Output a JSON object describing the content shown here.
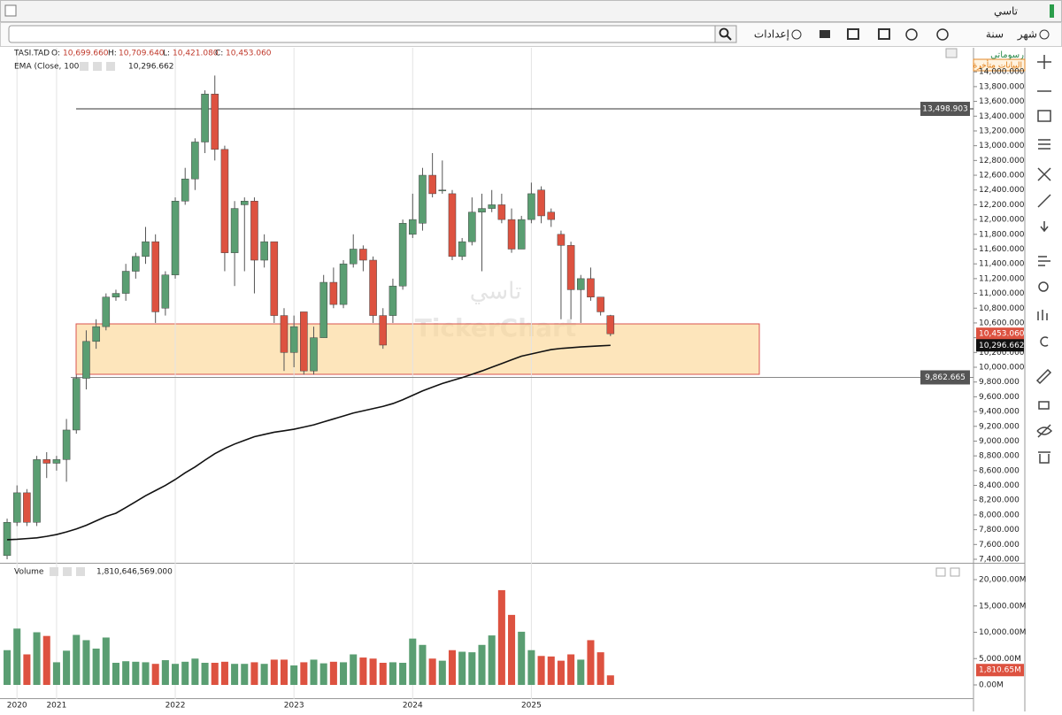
{
  "header": {
    "title": "تاسي",
    "buttons": [
      "شهر",
      "سنة",
      "إعدادات"
    ],
    "drawings_label": "رسوماتي",
    "delayed_label": "البيانات متأخرة",
    "watermark": "TickerChart",
    "watermark_ar": "تاسي"
  },
  "chart_data": {
    "type": "candlestick",
    "legend": {
      "symbol": "TASI.TAD",
      "o": "O:",
      "o_val": "10,699.660",
      "h": "H:",
      "h_val": "10,709.640",
      "l": "L:",
      "l_val": "10,421.080",
      "c": "C:",
      "c_val": "10,453.060",
      "ema_name": "EMA (Close, 100)",
      "ema_val": "10,296.662",
      "vol_name": "Volume",
      "vol_val": "1,810,646,569.000"
    },
    "xlim": [
      -0.54,
      97.7
    ],
    "xticks": [
      {
        "value": 1,
        "label": "2020"
      },
      {
        "value": 5,
        "label": "2021"
      },
      {
        "value": 17,
        "label": "2022"
      },
      {
        "value": 29,
        "label": "2023"
      },
      {
        "value": 41,
        "label": "2024"
      },
      {
        "value": 53,
        "label": "2025"
      }
    ],
    "ylim": [
      7352,
      14290
    ],
    "yticks": [
      {
        "value": 7400,
        "label": "7,400.000"
      },
      {
        "value": 7600,
        "label": "7,600.000"
      },
      {
        "value": 7800,
        "label": "7,800.000"
      },
      {
        "value": 8000,
        "label": "8,000.000"
      },
      {
        "value": 8200,
        "label": "8,200.000"
      },
      {
        "value": 8400,
        "label": "8,400.000"
      },
      {
        "value": 8600,
        "label": "8,600.000"
      },
      {
        "value": 8800,
        "label": "8,800.000"
      },
      {
        "value": 9000,
        "label": "9,000.000"
      },
      {
        "value": 9200,
        "label": "9,200.000"
      },
      {
        "value": 9400,
        "label": "9,400.000"
      },
      {
        "value": 9600,
        "label": "9,600.000"
      },
      {
        "value": 9800,
        "label": "9,800.000"
      },
      {
        "value": 10000,
        "label": "10,000.000"
      },
      {
        "value": 10200,
        "label": "10,200.000"
      },
      {
        "value": 10400,
        "label": "10,400.000"
      },
      {
        "value": 10600,
        "label": "10,600.000"
      },
      {
        "value": 10800,
        "label": "10,800.000"
      },
      {
        "value": 11000,
        "label": "11,000.000"
      },
      {
        "value": 11200,
        "label": "11,200.000"
      },
      {
        "value": 11400,
        "label": "11,400.000"
      },
      {
        "value": 11600,
        "label": "11,600.000"
      },
      {
        "value": 11800,
        "label": "11,800.000"
      },
      {
        "value": 12000,
        "label": "12,000.000"
      },
      {
        "value": 12200,
        "label": "12,200.000"
      },
      {
        "value": 12400,
        "label": "12,400.000"
      },
      {
        "value": 12600,
        "label": "12,600.000"
      },
      {
        "value": 12800,
        "label": "12,800.000"
      },
      {
        "value": 13000,
        "label": "13,000.000"
      },
      {
        "value": 13200,
        "label": "13,200.000"
      },
      {
        "value": 13400,
        "label": "13,400.000"
      },
      {
        "value": 13600,
        "label": "13,600.000"
      },
      {
        "value": 13800,
        "label": "13,800.000"
      },
      {
        "value": 14000,
        "label": "14,000.000"
      }
    ],
    "vlim": [
      -2690,
      22860
    ],
    "vticks": [
      {
        "value": 0,
        "label": "0.00M"
      },
      {
        "value": 5000,
        "label": "5,000.00M"
      },
      {
        "value": 10000,
        "label": "10,000.00M"
      },
      {
        "value": 15000,
        "label": "15,000.00M"
      },
      {
        "value": 20000,
        "label": "20,000.00M"
      }
    ],
    "up_color": "#5a9e72",
    "down_color": "#dd5240",
    "ema_color": "#111111",
    "open": [
      7450,
      7900,
      8300,
      7900,
      8750,
      8700,
      8750,
      9150,
      9850,
      10350,
      10550,
      10950,
      11000,
      11300,
      11500,
      11700,
      10800,
      11250,
      12250,
      12550,
      13050,
      13700,
      12950,
      11550,
      12200,
      12250,
      11450,
      11700,
      10700,
      10200,
      10750,
      9950,
      10400,
      11150,
      10850,
      11400,
      11600,
      11450,
      10700,
      10700,
      11100,
      11800,
      11950,
      12600,
      12400,
      12350,
      11500,
      11700,
      12100,
      12150,
      12200,
      12000,
      11600,
      12000,
      12400,
      12100,
      11800,
      11650,
      11050,
      11200,
      10950,
      10699.66
    ],
    "high": [
      7950,
      8400,
      8350,
      8800,
      8850,
      8800,
      9300,
      9900,
      10500,
      10650,
      11000,
      11050,
      11400,
      11550,
      11900,
      11800,
      11300,
      12300,
      12700,
      13100,
      13750,
      13950,
      13000,
      12250,
      12300,
      12300,
      11800,
      11700,
      10800,
      10700,
      10750,
      10550,
      11250,
      11350,
      11450,
      11800,
      11650,
      11500,
      10800,
      11200,
      12000,
      12350,
      12700,
      12900,
      12800,
      12400,
      11750,
      12300,
      12350,
      12400,
      12350,
      12150,
      12050,
      12500,
      12450,
      12150,
      11850,
      11700,
      11250,
      11350,
      10950,
      10709.64
    ],
    "low": [
      7400,
      7850,
      7850,
      7850,
      8500,
      8600,
      8450,
      9100,
      9700,
      10250,
      10500,
      10900,
      10900,
      11200,
      11400,
      10600,
      10700,
      11200,
      12200,
      12400,
      12900,
      12800,
      11300,
      11100,
      11300,
      11000,
      11350,
      10600,
      9950,
      10000,
      9900,
      9900,
      10400,
      10800,
      10800,
      11350,
      11300,
      10600,
      10250,
      10600,
      11050,
      11750,
      11850,
      12300,
      12350,
      11450,
      11450,
      11650,
      11300,
      12100,
      11950,
      11550,
      11600,
      11950,
      11950,
      11900,
      10650,
      10650,
      10600,
      10900,
      10700,
      10421.08
    ],
    "close": [
      7900,
      8300,
      7900,
      8750,
      8700,
      8750,
      9150,
      9850,
      10350,
      10550,
      10950,
      11000,
      11300,
      11500,
      11700,
      10750,
      11250,
      12250,
      12550,
      13050,
      13700,
      12950,
      11550,
      12150,
      12250,
      11450,
      11700,
      10700,
      10200,
      10550,
      9950,
      10400,
      11150,
      10850,
      11400,
      11600,
      11450,
      10700,
      10300,
      11100,
      11950,
      12000,
      12600,
      12350,
      12400,
      11500,
      11700,
      12100,
      12150,
      12200,
      12000,
      11600,
      12000,
      12350,
      12050,
      12000,
      11650,
      11050,
      11200,
      10950,
      10750,
      10453.06
    ],
    "ema": [
      7664,
      7670,
      7680,
      7690,
      7710,
      7735,
      7770,
      7810,
      7860,
      7920,
      7980,
      8023,
      8100,
      8180,
      8260,
      8330,
      8400,
      8480,
      8570,
      8650,
      8742,
      8830,
      8900,
      8960,
      9010,
      9060,
      9090,
      9120,
      9140,
      9161,
      9190,
      9220,
      9260,
      9300,
      9340,
      9380,
      9410,
      9440,
      9470,
      9508,
      9560,
      9620,
      9680,
      9730,
      9780,
      9820,
      9860,
      9904,
      9950,
      10000,
      10050,
      10100,
      10150,
      10180,
      10210,
      10239,
      10255,
      10265,
      10275,
      10282,
      10290,
      10296.662
    ],
    "volume": [
      6600,
      10700,
      5800,
      10000,
      9300,
      4300,
      6500,
      9500,
      8500,
      6900,
      9000,
      4200,
      4500,
      4400,
      4300,
      4000,
      4700,
      4000,
      4400,
      5000,
      4200,
      4200,
      4400,
      4000,
      4000,
      4300,
      4000,
      4800,
      4800,
      3700,
      4300,
      4800,
      4100,
      4400,
      4300,
      5800,
      5200,
      5000,
      4200,
      4300,
      4200,
      8800,
      7600,
      5000,
      4600,
      6600,
      6300,
      6200,
      7600,
      9400,
      18000,
      13300,
      10100,
      6600,
      5500,
      5400,
      4600,
      5800,
      4800,
      8500,
      6200,
      1810.646569
    ],
    "hlines": [
      {
        "value": 13498.903,
        "label": "13,498.903"
      },
      {
        "value": 9862.665,
        "label": "9,862.665"
      }
    ],
    "last_price": {
      "value": 10453.06,
      "label": "10,453.060"
    },
    "ema_last": {
      "value": 10296.662,
      "label": "10,296.662"
    },
    "volume_last": {
      "value": 1810.646569,
      "label": "1,810.65M"
    }
  }
}
